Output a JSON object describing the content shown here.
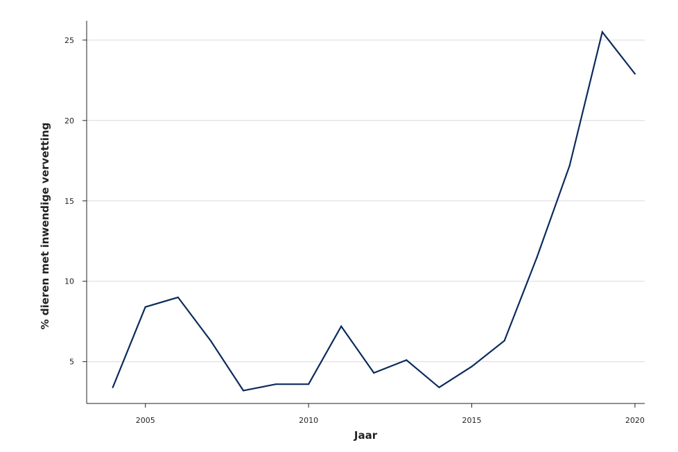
{
  "chart_data": {
    "type": "line",
    "title": "",
    "xlabel": "Jaar",
    "ylabel": "% dieren met inwendige vervetting",
    "xlim": [
      2003.2,
      2020.3
    ],
    "ylim": [
      2.4,
      26.2
    ],
    "xticks": [
      2005,
      2010,
      2015,
      2020
    ],
    "yticks": [
      5,
      10,
      15,
      20,
      25
    ],
    "grid": "horizontal",
    "legend": "none",
    "colors": {
      "line": "#0b2a5c",
      "grid": "#d9d9d9",
      "axis": "#222222"
    },
    "series": [
      {
        "x": [
          2004,
          2005,
          2006,
          2007,
          2008,
          2009,
          2010,
          2011,
          2012,
          2013,
          2014,
          2015,
          2016,
          2017,
          2018,
          2019,
          2020
        ],
        "values": [
          3.4,
          8.4,
          9.0,
          6.3,
          3.2,
          3.6,
          3.6,
          7.2,
          4.3,
          5.1,
          3.4,
          4.7,
          6.3,
          11.5,
          17.2,
          25.5,
          22.9
        ]
      }
    ]
  }
}
